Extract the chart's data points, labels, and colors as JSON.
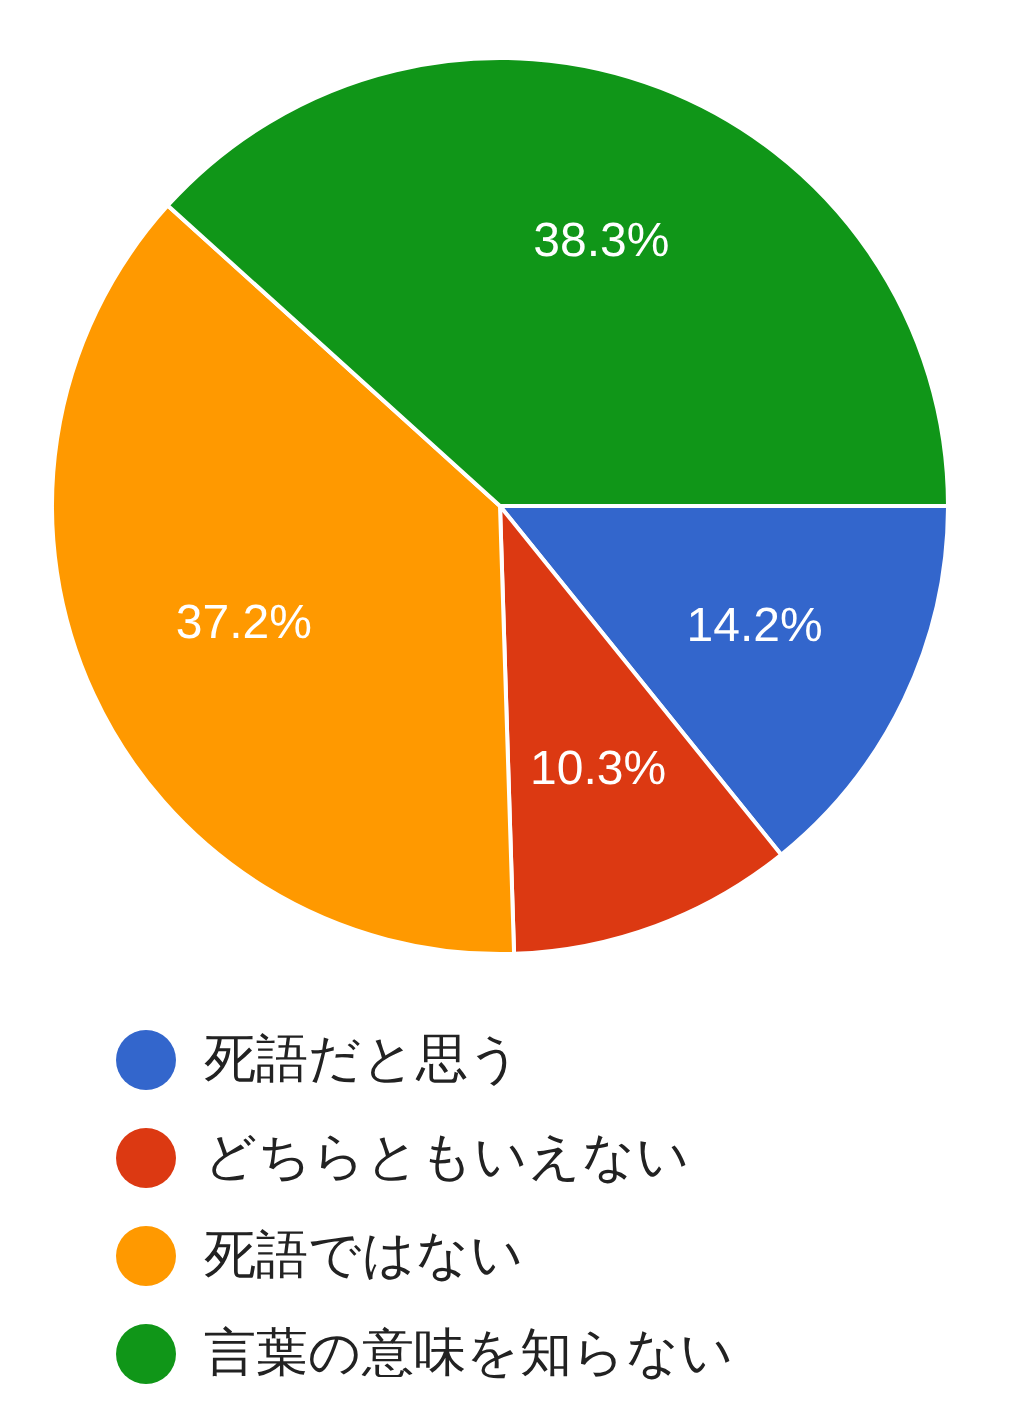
{
  "chart_data": {
    "type": "pie",
    "categories": [
      "死語だと思う",
      "どちらともいえない",
      "死語ではない",
      "言葉の意味を知らない"
    ],
    "values": [
      14.2,
      10.3,
      37.2,
      38.3
    ],
    "colors": [
      "#3366cc",
      "#dc3912",
      "#ff9900",
      "#109618"
    ],
    "value_labels": [
      "14.2%",
      "10.3%",
      "37.2%",
      "38.3%"
    ],
    "legend": "bottom"
  }
}
